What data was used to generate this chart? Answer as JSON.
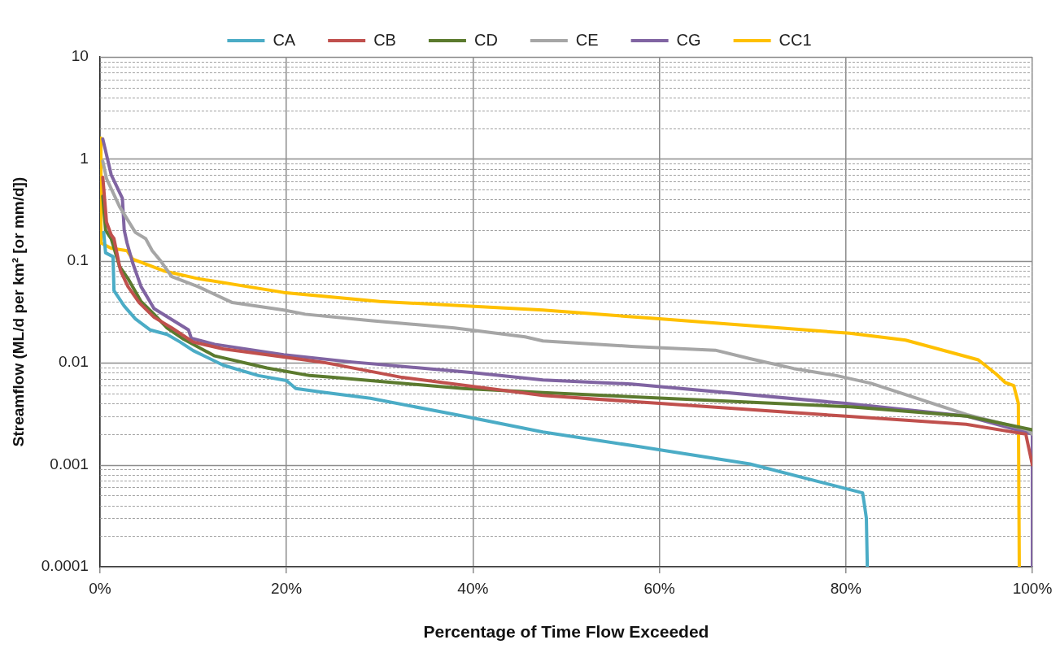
{
  "chart_data": {
    "type": "line",
    "xlabel": "Percentage of Time Flow Exceeded",
    "ylabel": "Streamflow (ML/d per km² [or mm/d])",
    "log": "y",
    "grid": true,
    "legend": "top",
    "xlim": [
      0,
      100
    ],
    "xticks": [
      {
        "value": 0,
        "label": "0%"
      },
      {
        "value": 20,
        "label": "20%"
      },
      {
        "value": 40,
        "label": "40%"
      },
      {
        "value": 60,
        "label": "60%"
      },
      {
        "value": 80,
        "label": "80%"
      },
      {
        "value": 100,
        "label": "100%"
      }
    ],
    "ylim": [
      0.0001,
      10
    ],
    "yticks": [
      0.0001,
      {
        "value": 0.0002,
        "label": null
      },
      {
        "value": 0.0003,
        "label": null
      },
      {
        "value": 0.0004,
        "label": null
      },
      {
        "value": 0.0005,
        "label": null
      },
      {
        "value": 0.0006,
        "label": null
      },
      {
        "value": 0.0007,
        "label": null
      },
      {
        "value": 0.0008,
        "label": null
      },
      {
        "value": 0.0009,
        "label": null
      },
      0.001,
      {
        "value": 0.002,
        "label": null
      },
      {
        "value": 0.003,
        "label": null
      },
      {
        "value": 0.004,
        "label": null
      },
      {
        "value": 0.005,
        "label": null
      },
      {
        "value": 0.006,
        "label": null
      },
      {
        "value": 0.007,
        "label": null
      },
      {
        "value": 0.008,
        "label": null
      },
      {
        "value": 0.009,
        "label": null
      },
      0.01,
      {
        "value": 0.02,
        "label": null
      },
      {
        "value": 0.03,
        "label": null
      },
      {
        "value": 0.04,
        "label": null
      },
      {
        "value": 0.05,
        "label": null
      },
      {
        "value": 0.06,
        "label": null
      },
      {
        "value": 0.07,
        "label": null
      },
      {
        "value": 0.08,
        "label": null
      },
      {
        "value": 0.09,
        "label": null
      },
      0.1,
      {
        "value": 0.2,
        "label": null
      },
      {
        "value": 0.3,
        "label": null
      },
      {
        "value": 0.4,
        "label": null
      },
      {
        "value": 0.5,
        "label": null
      },
      {
        "value": 0.6,
        "label": null
      },
      {
        "value": 0.7,
        "label": null
      },
      {
        "value": 0.8,
        "label": null
      },
      {
        "value": 0.9,
        "label": null
      },
      1,
      {
        "value": 2,
        "label": null
      },
      {
        "value": 3,
        "label": null
      },
      {
        "value": 4,
        "label": null
      },
      {
        "value": 5,
        "label": null
      },
      {
        "value": 6,
        "label": null
      },
      {
        "value": 7,
        "label": null
      },
      {
        "value": 8,
        "label": null
      },
      {
        "value": 9,
        "label": null
      },
      10
    ],
    "series": [
      {
        "name": "CA",
        "color": "#4bacc6",
        "x": [
          0.4,
          0.6,
          1.4,
          1.5,
          2.6,
          3.8,
          5.4,
          7.2,
          8.6,
          10,
          13.2,
          17,
          20,
          21,
          23.5,
          29,
          39,
          47.5,
          58,
          69.7,
          81.8,
          82,
          82.2,
          82.3
        ],
        "values": [
          0.19,
          0.12,
          0.11,
          0.051,
          0.036,
          0.027,
          0.021,
          0.019,
          0.016,
          0.0132,
          0.0095,
          0.0075,
          0.0067,
          0.0056,
          0.0052,
          0.0045,
          0.003,
          0.0021,
          0.0015,
          0.00102,
          0.00053,
          0.0004,
          0.0003,
          0.0001
        ]
      },
      {
        "name": "CB",
        "color": "#c0504d",
        "x": [
          0.3,
          0.7,
          1.2,
          1.5,
          2.2,
          3,
          4.2,
          5.8,
          7.7,
          10,
          13.2,
          19.7,
          24,
          32.4,
          47.5,
          60,
          80,
          92.9,
          99.3,
          100
        ],
        "values": [
          0.66,
          0.24,
          0.18,
          0.165,
          0.08,
          0.056,
          0.039,
          0.028,
          0.022,
          0.016,
          0.0137,
          0.0114,
          0.0101,
          0.0072,
          0.0048,
          0.004,
          0.003,
          0.0025,
          0.002,
          0.001
        ]
      },
      {
        "name": "CD",
        "color": "#5b7a2e",
        "x": [
          0.3,
          0.6,
          1.2,
          2.1,
          3,
          4.4,
          5.8,
          7.2,
          9,
          12.3,
          17.9,
          22.5,
          25,
          39,
          47.5,
          80.5,
          93,
          100
        ],
        "values": [
          0.43,
          0.2,
          0.165,
          0.088,
          0.067,
          0.04,
          0.03,
          0.022,
          0.017,
          0.0117,
          0.0089,
          0.0075,
          0.0072,
          0.0056,
          0.0051,
          0.0037,
          0.003,
          0.0022
        ]
      },
      {
        "name": "CE",
        "color": "#a6a6a6",
        "x": [
          0.3,
          0.7,
          2.1,
          3.8,
          4.9,
          5.6,
          6.5,
          7.7,
          10.5,
          14.2,
          19.7,
          22,
          29,
          38,
          45.6,
          47.5,
          57,
          66,
          69.7,
          74.4,
          79,
          82.7,
          93,
          99.5,
          100
        ],
        "values": [
          0.95,
          0.64,
          0.34,
          0.19,
          0.165,
          0.126,
          0.1,
          0.07,
          0.056,
          0.039,
          0.033,
          0.03,
          0.026,
          0.022,
          0.018,
          0.0164,
          0.0145,
          0.0133,
          0.011,
          0.0088,
          0.0075,
          0.0063,
          0.0031,
          0.0022,
          0.002
        ]
      },
      {
        "name": "CG",
        "color": "#8064a2",
        "x": [
          0.3,
          1.2,
          2.4,
          2.6,
          2.9,
          3.5,
          4.4,
          5.8,
          9.5,
          9.8,
          12.3,
          19.7,
          27,
          40,
          47.5,
          57,
          80,
          93,
          100,
          100
        ],
        "values": [
          1.57,
          0.7,
          0.41,
          0.2,
          0.15,
          0.096,
          0.056,
          0.034,
          0.021,
          0.0174,
          0.0152,
          0.012,
          0.0102,
          0.008,
          0.0068,
          0.0062,
          0.004,
          0.003,
          0.002,
          0.0001
        ]
      },
      {
        "name": "CC1",
        "color": "#ffc000",
        "x": [
          0.1,
          0.1,
          1.2,
          2.9,
          3.5,
          6.8,
          10.5,
          19.7,
          30,
          47.5,
          60,
          80.4,
          86.4,
          92.2,
          94.2,
          96.1,
          97.1,
          98,
          98.5,
          98.6
        ],
        "values": [
          1.6,
          0.15,
          0.133,
          0.126,
          0.104,
          0.08,
          0.067,
          0.049,
          0.04,
          0.033,
          0.027,
          0.0195,
          0.0167,
          0.012,
          0.0107,
          0.0078,
          0.0064,
          0.006,
          0.004,
          0.0001
        ]
      }
    ]
  }
}
